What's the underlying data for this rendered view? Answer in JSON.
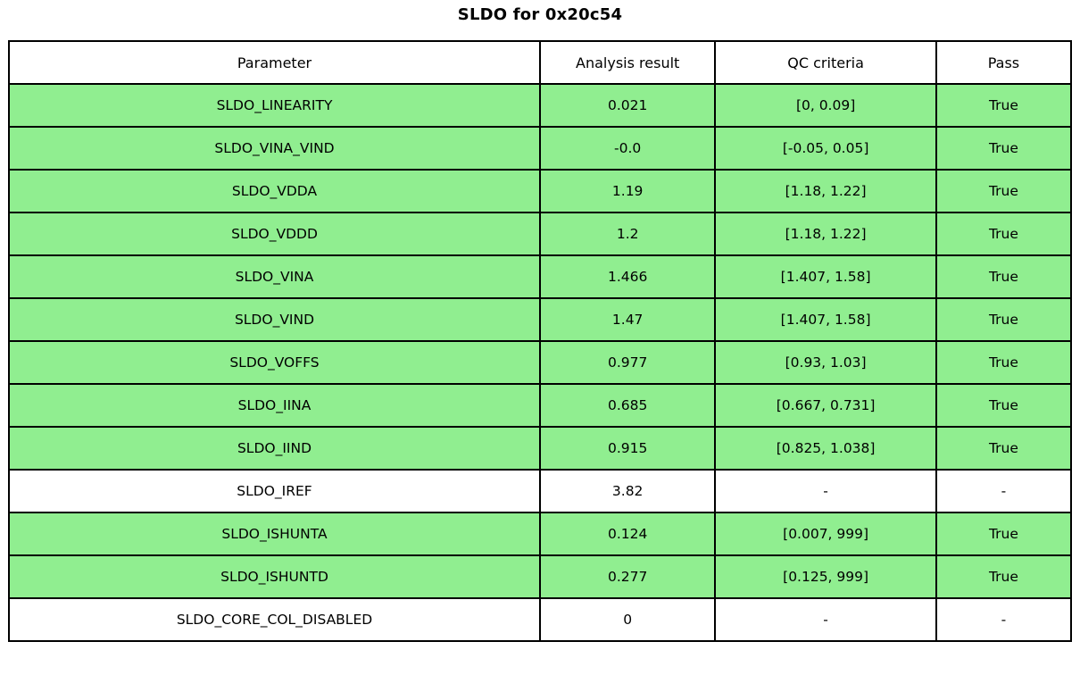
{
  "chart_data": {
    "type": "table",
    "title": "SLDO for 0x20c54",
    "columns": [
      "Parameter",
      "Analysis result",
      "QC criteria",
      "Pass"
    ],
    "rows": [
      {
        "parameter": "SLDO_LINEARITY",
        "analysis_result": "0.021",
        "qc_criteria": "[0, 0.09]",
        "pass": "True",
        "highlighted": true
      },
      {
        "parameter": "SLDO_VINA_VIND",
        "analysis_result": "-0.0",
        "qc_criteria": "[-0.05, 0.05]",
        "pass": "True",
        "highlighted": true
      },
      {
        "parameter": "SLDO_VDDA",
        "analysis_result": "1.19",
        "qc_criteria": "[1.18, 1.22]",
        "pass": "True",
        "highlighted": true
      },
      {
        "parameter": "SLDO_VDDD",
        "analysis_result": "1.2",
        "qc_criteria": "[1.18, 1.22]",
        "pass": "True",
        "highlighted": true
      },
      {
        "parameter": "SLDO_VINA",
        "analysis_result": "1.466",
        "qc_criteria": "[1.407, 1.58]",
        "pass": "True",
        "highlighted": true
      },
      {
        "parameter": "SLDO_VIND",
        "analysis_result": "1.47",
        "qc_criteria": "[1.407, 1.58]",
        "pass": "True",
        "highlighted": true
      },
      {
        "parameter": "SLDO_VOFFS",
        "analysis_result": "0.977",
        "qc_criteria": "[0.93, 1.03]",
        "pass": "True",
        "highlighted": true
      },
      {
        "parameter": "SLDO_IINA",
        "analysis_result": "0.685",
        "qc_criteria": "[0.667, 0.731]",
        "pass": "True",
        "highlighted": true
      },
      {
        "parameter": "SLDO_IIND",
        "analysis_result": "0.915",
        "qc_criteria": "[0.825, 1.038]",
        "pass": "True",
        "highlighted": true
      },
      {
        "parameter": "SLDO_IREF",
        "analysis_result": "3.82",
        "qc_criteria": "-",
        "pass": "-",
        "highlighted": false
      },
      {
        "parameter": "SLDO_ISHUNTA",
        "analysis_result": "0.124",
        "qc_criteria": "[0.007, 999]",
        "pass": "True",
        "highlighted": true
      },
      {
        "parameter": "SLDO_ISHUNTD",
        "analysis_result": "0.277",
        "qc_criteria": "[0.125, 999]",
        "pass": "True",
        "highlighted": true
      },
      {
        "parameter": "SLDO_CORE_COL_DISABLED",
        "analysis_result": "0",
        "qc_criteria": "-",
        "pass": "-",
        "highlighted": false
      }
    ],
    "layout_hints": {
      "grid": "on",
      "legend": "none",
      "title_position": "top-center"
    }
  },
  "colors": {
    "pass_row": "#90EE90",
    "neutral_row": "#FFFFFF",
    "border": "#000000",
    "text": "#000000"
  }
}
